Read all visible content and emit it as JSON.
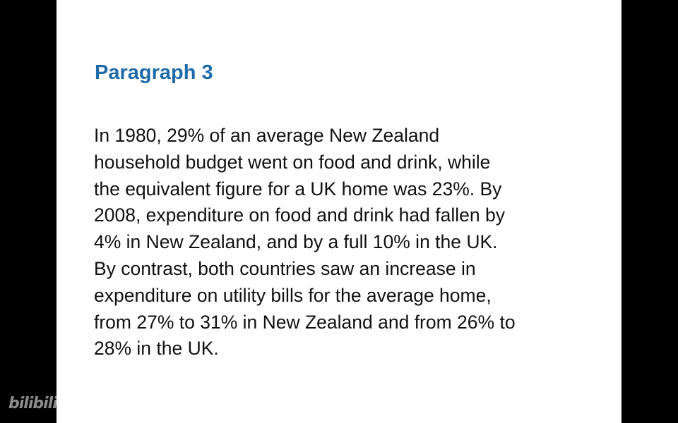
{
  "slide": {
    "heading": "Paragraph 3",
    "body_lines": [
      "In 1980, 29% of an average New Zealand",
      "household budget went on food and drink, while",
      "the equivalent figure for a UK home was 23%. By",
      "2008, expenditure on food and drink had fallen by",
      "4% in New Zealand, and by a full 10% in the UK.",
      "By contrast, both countries saw an increase in",
      "expenditure on utility bills for the average home,",
      "from 27% to 31% in New Zealand and from 26% to",
      "28% in the UK."
    ]
  },
  "watermark": "bilibili",
  "colors": {
    "heading": "#1f6aa8",
    "text": "#111111",
    "background": "#ffffff",
    "letterbox": "#000000"
  }
}
